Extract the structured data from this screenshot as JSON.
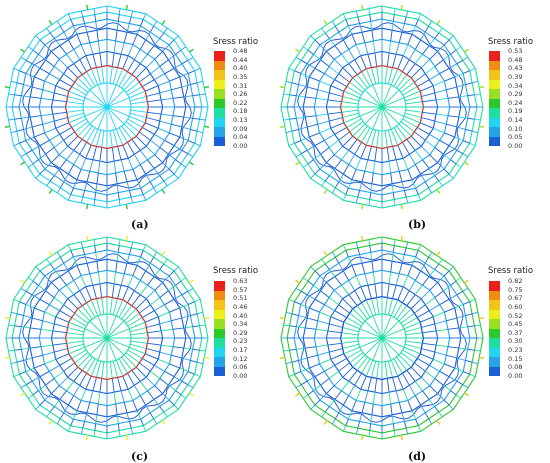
{
  "colors": [
    "#1a5fd6",
    "#27a4e8",
    "#22d5f2",
    "#1edfa0",
    "#2bc92b",
    "#9ae022",
    "#ecef1a",
    "#f2c417",
    "#f08c12",
    "#e9211a"
  ],
  "panels": [
    {
      "caption": "(a)",
      "legend_title": "Sress ratio",
      "legend_values": [
        "0.48",
        "0.44",
        "0.40",
        "0.35",
        "0.31",
        "0.26",
        "0.22",
        "0.18",
        "0.13",
        "0.09",
        "0.04",
        "0.00"
      ],
      "intensity": 0.15
    },
    {
      "caption": "(b)",
      "legend_title": "Sress ratio",
      "legend_values": [
        "0.53",
        "0.48",
        "0.43",
        "0.39",
        "0.34",
        "0.29",
        "0.24",
        "0.19",
        "0.14",
        "0.10",
        "0.05",
        "0.00"
      ],
      "intensity": 0.45
    },
    {
      "caption": "(c)",
      "legend_title": "Sress ratio",
      "legend_values": [
        "0.63",
        "0.57",
        "0.51",
        "0.46",
        "0.40",
        "0.34",
        "0.29",
        "0.23",
        "0.17",
        "0.12",
        "0.06",
        "0.00"
      ],
      "intensity": 0.65
    },
    {
      "caption": "(d)",
      "legend_title": "Sress ratio",
      "legend_values": [
        "0.82",
        "0.75",
        "0.67",
        "0.60",
        "0.52",
        "0.45",
        "0.37",
        "0.30",
        "0.23",
        "0.15",
        "0.08",
        "0.00"
      ],
      "intensity": 0.85
    }
  ]
}
